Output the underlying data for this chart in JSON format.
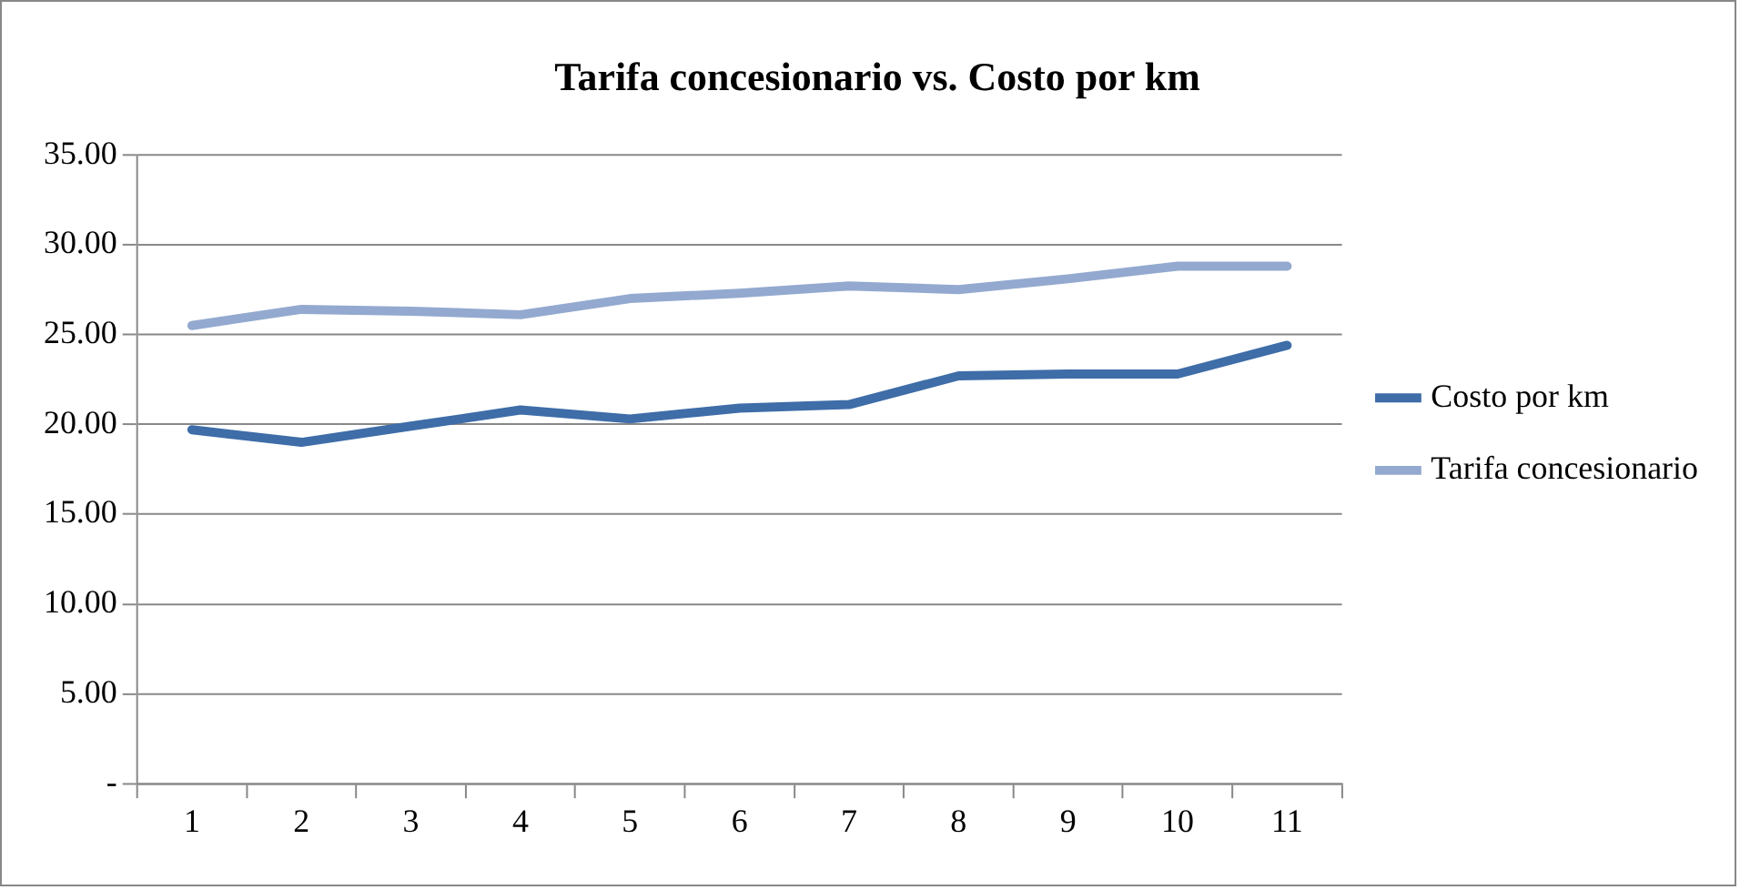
{
  "chart_data": {
    "type": "line",
    "title": "Tarifa concesionario vs. Costo por km",
    "categories": [
      "1",
      "2",
      "3",
      "4",
      "5",
      "6",
      "7",
      "8",
      "9",
      "10",
      "11"
    ],
    "series": [
      {
        "name": "Costo por km",
        "color": "#3e6da8",
        "values": [
          19.7,
          19.0,
          19.9,
          20.8,
          20.3,
          20.9,
          21.1,
          22.7,
          22.8,
          22.8,
          24.4
        ]
      },
      {
        "name": "Tarifa concesionario",
        "color": "#93a9cf",
        "values": [
          25.5,
          26.4,
          26.3,
          26.1,
          27.0,
          27.3,
          27.7,
          27.5,
          28.1,
          28.8,
          28.8
        ]
      }
    ],
    "ylim": [
      0,
      35
    ],
    "yticks": [
      {
        "value": 0,
        "label": "-"
      },
      {
        "value": 5,
        "label": "5.00"
      },
      {
        "value": 10,
        "label": "10.00"
      },
      {
        "value": 15,
        "label": "15.00"
      },
      {
        "value": 20,
        "label": "20.00"
      },
      {
        "value": 25,
        "label": "25.00"
      },
      {
        "value": 30,
        "label": "30.00"
      },
      {
        "value": 35,
        "label": "35.00"
      }
    ],
    "grid": "y",
    "legend": "right",
    "marker": "none",
    "line_style": "solid"
  }
}
